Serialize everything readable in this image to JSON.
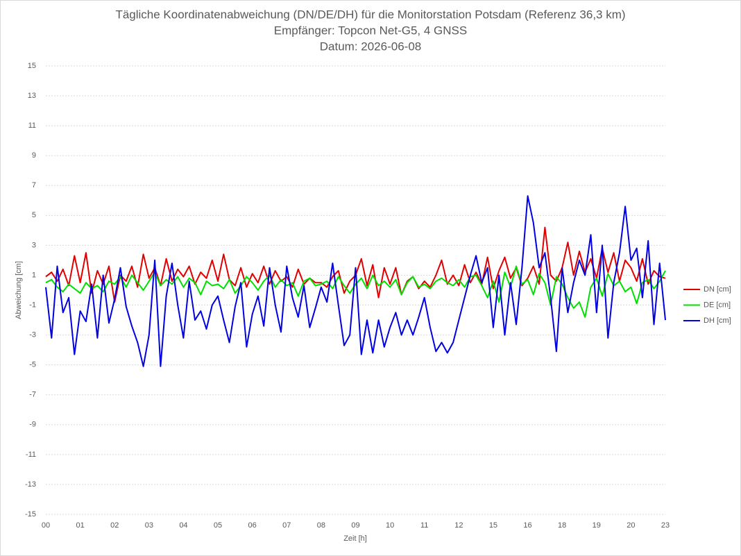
{
  "chart_data": {
    "type": "line",
    "title": "Tägliche Koordinatenabweichung (DN/DE/DH) für die Monitorstation Potsdam (Referenz 36,3 km)",
    "subtitle": "Empfänger: Topcon Net-G5, 4 GNSS",
    "date_label": "Datum: 2026-06-08",
    "x_label": "Zeit [h]",
    "y_label": "Abweichung [cm]",
    "categories": [
      "00",
      null,
      null,
      null,
      null,
      null,
      "01",
      null,
      null,
      null,
      null,
      null,
      "02",
      null,
      null,
      null,
      null,
      null,
      "03",
      null,
      null,
      null,
      null,
      null,
      "04",
      null,
      null,
      null,
      null,
      null,
      "05",
      null,
      null,
      null,
      null,
      null,
      "06",
      null,
      null,
      null,
      null,
      null,
      "07",
      null,
      null,
      null,
      null,
      null,
      "08",
      null,
      null,
      null,
      null,
      null,
      "09",
      null,
      null,
      null,
      null,
      null,
      "10",
      null,
      null,
      null,
      null,
      null,
      "11",
      null,
      null,
      null,
      null,
      null,
      "12",
      null,
      null,
      null,
      null,
      null,
      "15",
      null,
      null,
      null,
      null,
      null,
      "16",
      null,
      null,
      null,
      null,
      null,
      "18",
      null,
      null,
      null,
      null,
      null,
      "19",
      null,
      null,
      null,
      null,
      null,
      "20",
      null,
      null,
      null,
      null,
      null,
      "23"
    ],
    "series": [
      {
        "name": "DN [cm]",
        "color": "#e00000",
        "values": [
          0.9,
          1.2,
          0.6,
          1.4,
          0.3,
          2.3,
          0.5,
          2.5,
          -0.2,
          1.3,
          0.4,
          1.6,
          -0.8,
          1.0,
          0.6,
          1.6,
          0.2,
          2.4,
          0.8,
          1.5,
          0.3,
          2.1,
          0.6,
          1.4,
          0.9,
          1.6,
          0.4,
          1.2,
          0.8,
          2.0,
          0.6,
          2.4,
          0.7,
          0.3,
          1.5,
          0.2,
          1.1,
          0.5,
          1.6,
          0.4,
          1.3,
          0.6,
          0.9,
          0.2,
          1.4,
          0.4,
          0.8,
          0.5,
          0.5,
          0.2,
          0.9,
          1.3,
          -0.2,
          0.6,
          1.0,
          2.1,
          0.3,
          1.7,
          -0.5,
          1.5,
          0.4,
          1.5,
          -0.3,
          0.6,
          0.9,
          0.1,
          0.6,
          0.2,
          1.0,
          2.0,
          0.4,
          1.0,
          0.3,
          1.7,
          0.5,
          1.2,
          0.4,
          2.2,
          0.1,
          1.3,
          2.2,
          0.8,
          1.5,
          0.3,
          0.8,
          1.6,
          0.4,
          4.2,
          1.0,
          0.6,
          1.5,
          3.2,
          1.0,
          2.6,
          1.2,
          2.1,
          0.8,
          2.8,
          1.2,
          2.5,
          0.6,
          2.0,
          1.5,
          0.6,
          2.1,
          0.4,
          1.3,
          0.9,
          0.8
        ]
      },
      {
        "name": "DE [cm]",
        "color": "#00e000",
        "values": [
          0.5,
          0.7,
          0.2,
          -0.1,
          0.4,
          0.1,
          -0.2,
          0.5,
          0.1,
          0.3,
          -0.1,
          0.6,
          0.4,
          0.9,
          0.2,
          1.0,
          0.5,
          0.0,
          0.6,
          1.2,
          0.3,
          0.7,
          0.4,
          0.9,
          0.2,
          0.8,
          0.5,
          -0.3,
          0.6,
          0.3,
          0.4,
          0.1,
          0.7,
          -0.2,
          0.3,
          0.9,
          0.5,
          0.0,
          0.6,
          1.0,
          0.2,
          0.7,
          0.3,
          0.5,
          -0.4,
          0.6,
          0.8,
          0.3,
          0.4,
          0.6,
          0.1,
          0.9,
          0.3,
          -0.2,
          0.4,
          0.8,
          0.1,
          1.0,
          0.3,
          0.6,
          0.2,
          0.7,
          -0.3,
          0.5,
          0.9,
          0.2,
          0.4,
          0.1,
          0.6,
          0.8,
          0.5,
          0.3,
          0.7,
          0.2,
          0.9,
          1.0,
          0.3,
          -0.5,
          0.6,
          -0.8,
          1.2,
          0.2,
          1.6,
          0.4,
          0.7,
          -0.3,
          1.1,
          0.5,
          -1.0,
          0.9,
          0.4,
          -0.5,
          -1.2,
          -0.8,
          -1.8,
          0.2,
          0.8,
          -0.4,
          1.1,
          0.3,
          0.6,
          -0.1,
          0.2,
          -0.9,
          0.5,
          0.7,
          0.1,
          0.6,
          1.3
        ]
      },
      {
        "name": "DH [cm]",
        "color": "#0000e0",
        "values": [
          0.2,
          -3.2,
          1.6,
          -1.5,
          -0.5,
          -4.3,
          -1.4,
          -2.1,
          0.4,
          -3.2,
          1.0,
          -2.2,
          -0.6,
          1.5,
          -1.1,
          -2.4,
          -3.5,
          -5.1,
          -3.0,
          2.0,
          -5.1,
          -0.4,
          1.8,
          -1.0,
          -3.2,
          0.6,
          -2.0,
          -1.4,
          -2.6,
          -1.0,
          -0.4,
          -2.0,
          -3.5,
          -1.1,
          0.5,
          -3.8,
          -1.6,
          -0.4,
          -2.4,
          1.5,
          -1.0,
          -2.8,
          1.6,
          -0.5,
          -1.8,
          0.3,
          -2.5,
          -1.2,
          0.2,
          -0.8,
          1.8,
          -1.0,
          -3.7,
          -3.0,
          1.5,
          -4.3,
          -2.0,
          -4.2,
          -2.0,
          -3.8,
          -2.5,
          -1.5,
          -3.0,
          -2.0,
          -3.0,
          -1.8,
          -0.5,
          -2.5,
          -4.1,
          -3.5,
          -4.2,
          -3.5,
          -2.0,
          -0.5,
          1.0,
          2.3,
          0.5,
          1.5,
          -2.5,
          1.0,
          -3.0,
          0.5,
          -2.3,
          1.5,
          6.3,
          4.5,
          1.5,
          2.5,
          -0.5,
          -4.1,
          1.5,
          -1.5,
          0.5,
          2.0,
          1.0,
          3.7,
          -1.5,
          3.0,
          -3.2,
          0.5,
          2.5,
          5.6,
          2.0,
          2.8,
          -0.5,
          3.3,
          -2.3,
          1.8,
          -2.0
        ]
      }
    ],
    "ylim": [
      -15,
      15
    ],
    "yticks": [
      -15,
      -13,
      -11,
      -9,
      -7,
      -5,
      -3,
      -1,
      1,
      3,
      5,
      7,
      9,
      11,
      13,
      15
    ],
    "grid": true,
    "legend": "right"
  }
}
